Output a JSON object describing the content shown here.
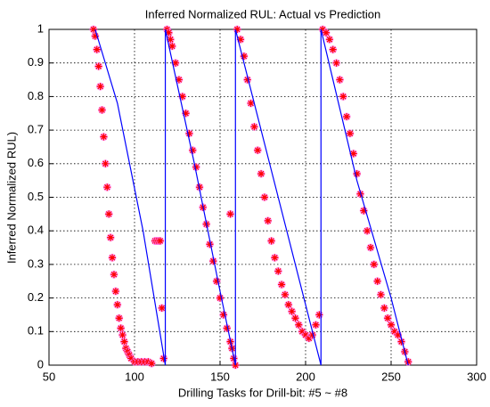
{
  "chart_data": {
    "type": "line",
    "title": "Inferred Normalized RUL: Actual vs Prediction",
    "x_label": "Drilling Tasks for Drill-bit: #5 ~ #8",
    "y_label": "Inferred Normalized RUL)",
    "xlim": [
      50,
      300
    ],
    "xticks": [
      50,
      100,
      150,
      200,
      250,
      300
    ],
    "ylim": [
      0,
      1
    ],
    "yticks": [
      0,
      0.1,
      0.2,
      0.3,
      0.4,
      0.5,
      0.6,
      0.7,
      0.8,
      0.9,
      1
    ],
    "grid": true,
    "series": [
      {
        "color": "#0000ff",
        "x": [
          77,
          90,
          105,
          118,
          118,
          135,
          150,
          159,
          159,
          180,
          200,
          209,
          209,
          230,
          250,
          260
        ],
        "values": [
          1,
          0.78,
          0.4,
          0,
          1,
          0.6,
          0.22,
          0,
          1,
          0.58,
          0.18,
          0,
          1,
          0.55,
          0.2,
          0
        ]
      },
      {
        "color": "#ff0000",
        "halo_color": "#ff77ff",
        "marker": "star",
        "x": [
          76,
          77,
          78,
          79,
          80,
          81,
          82,
          83,
          84,
          85,
          86,
          87,
          88,
          89,
          90,
          91,
          92,
          93,
          94,
          95,
          96,
          97,
          98,
          100,
          102,
          104,
          106,
          108,
          110,
          112,
          113,
          114,
          115,
          116,
          117,
          119,
          120,
          121,
          122,
          124,
          126,
          128,
          130,
          132,
          134,
          136,
          138,
          140,
          142,
          144,
          146,
          148,
          150,
          152,
          154,
          156,
          157,
          158,
          159,
          156,
          160,
          162,
          164,
          166,
          168,
          170,
          172,
          174,
          176,
          178,
          180,
          182,
          184,
          186,
          188,
          190,
          192,
          194,
          196,
          198,
          200,
          202,
          204,
          206,
          208,
          210,
          212,
          214,
          216,
          218,
          220,
          222,
          224,
          226,
          228,
          230,
          232,
          234,
          236,
          238,
          240,
          242,
          244,
          246,
          248,
          250,
          252,
          254,
          256,
          258,
          260
        ],
        "values": [
          1,
          0.98,
          0.94,
          0.89,
          0.83,
          0.76,
          0.68,
          0.6,
          0.53,
          0.45,
          0.38,
          0.32,
          0.27,
          0.22,
          0.18,
          0.14,
          0.11,
          0.09,
          0.07,
          0.05,
          0.04,
          0.03,
          0.02,
          0.01,
          0.01,
          0.01,
          0.01,
          0.01,
          0.005,
          0.37,
          0.37,
          0.37,
          0.37,
          0.17,
          0.02,
          1,
          0.99,
          0.97,
          0.95,
          0.9,
          0.85,
          0.8,
          0.75,
          0.69,
          0.64,
          0.59,
          0.53,
          0.47,
          0.42,
          0.36,
          0.31,
          0.25,
          0.2,
          0.15,
          0.11,
          0.07,
          0.05,
          0.02,
          0,
          0.45,
          1,
          0.97,
          0.92,
          0.85,
          0.78,
          0.71,
          0.64,
          0.57,
          0.5,
          0.43,
          0.37,
          0.32,
          0.28,
          0.24,
          0.21,
          0.18,
          0.16,
          0.14,
          0.12,
          0.1,
          0.09,
          0.08,
          0.09,
          0.12,
          0.15,
          1,
          0.99,
          0.97,
          0.94,
          0.9,
          0.85,
          0.8,
          0.74,
          0.69,
          0.63,
          0.57,
          0.51,
          0.46,
          0.4,
          0.35,
          0.3,
          0.25,
          0.21,
          0.17,
          0.14,
          0.12,
          0.1,
          0.09,
          0.07,
          0.04,
          0.01
        ]
      }
    ]
  }
}
